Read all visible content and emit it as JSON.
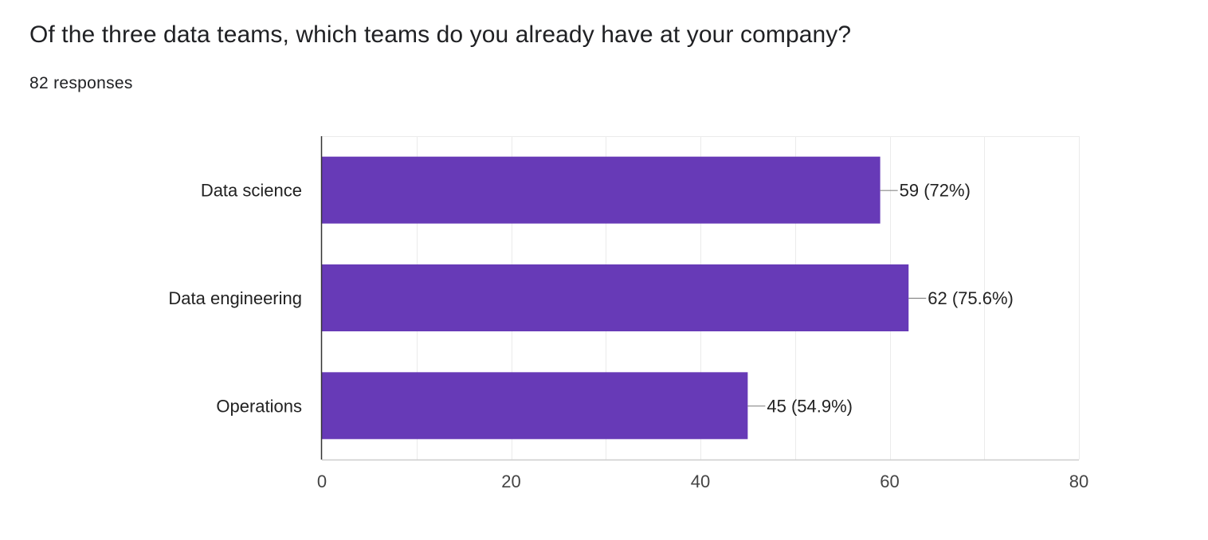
{
  "question": {
    "title": "Of the three data teams, which teams do you already have at your company?",
    "response_count": "82 responses"
  },
  "colors": {
    "bar": "#673ab7",
    "grid": "#ebebeb",
    "axis": "#333333"
  },
  "chart_data": {
    "type": "bar",
    "orientation": "horizontal",
    "categories": [
      "Data science",
      "Data engineering",
      "Operations"
    ],
    "values": [
      59,
      62,
      45
    ],
    "data_labels": [
      "59 (72%)",
      "62 (75.6%)",
      "45 (54.9%)"
    ],
    "xlim": [
      0,
      80
    ],
    "xticks": [
      0,
      20,
      40,
      60,
      80
    ],
    "xtick_labels": [
      "0",
      "20",
      "40",
      "60",
      "80"
    ],
    "grid": true,
    "legend": "none"
  }
}
